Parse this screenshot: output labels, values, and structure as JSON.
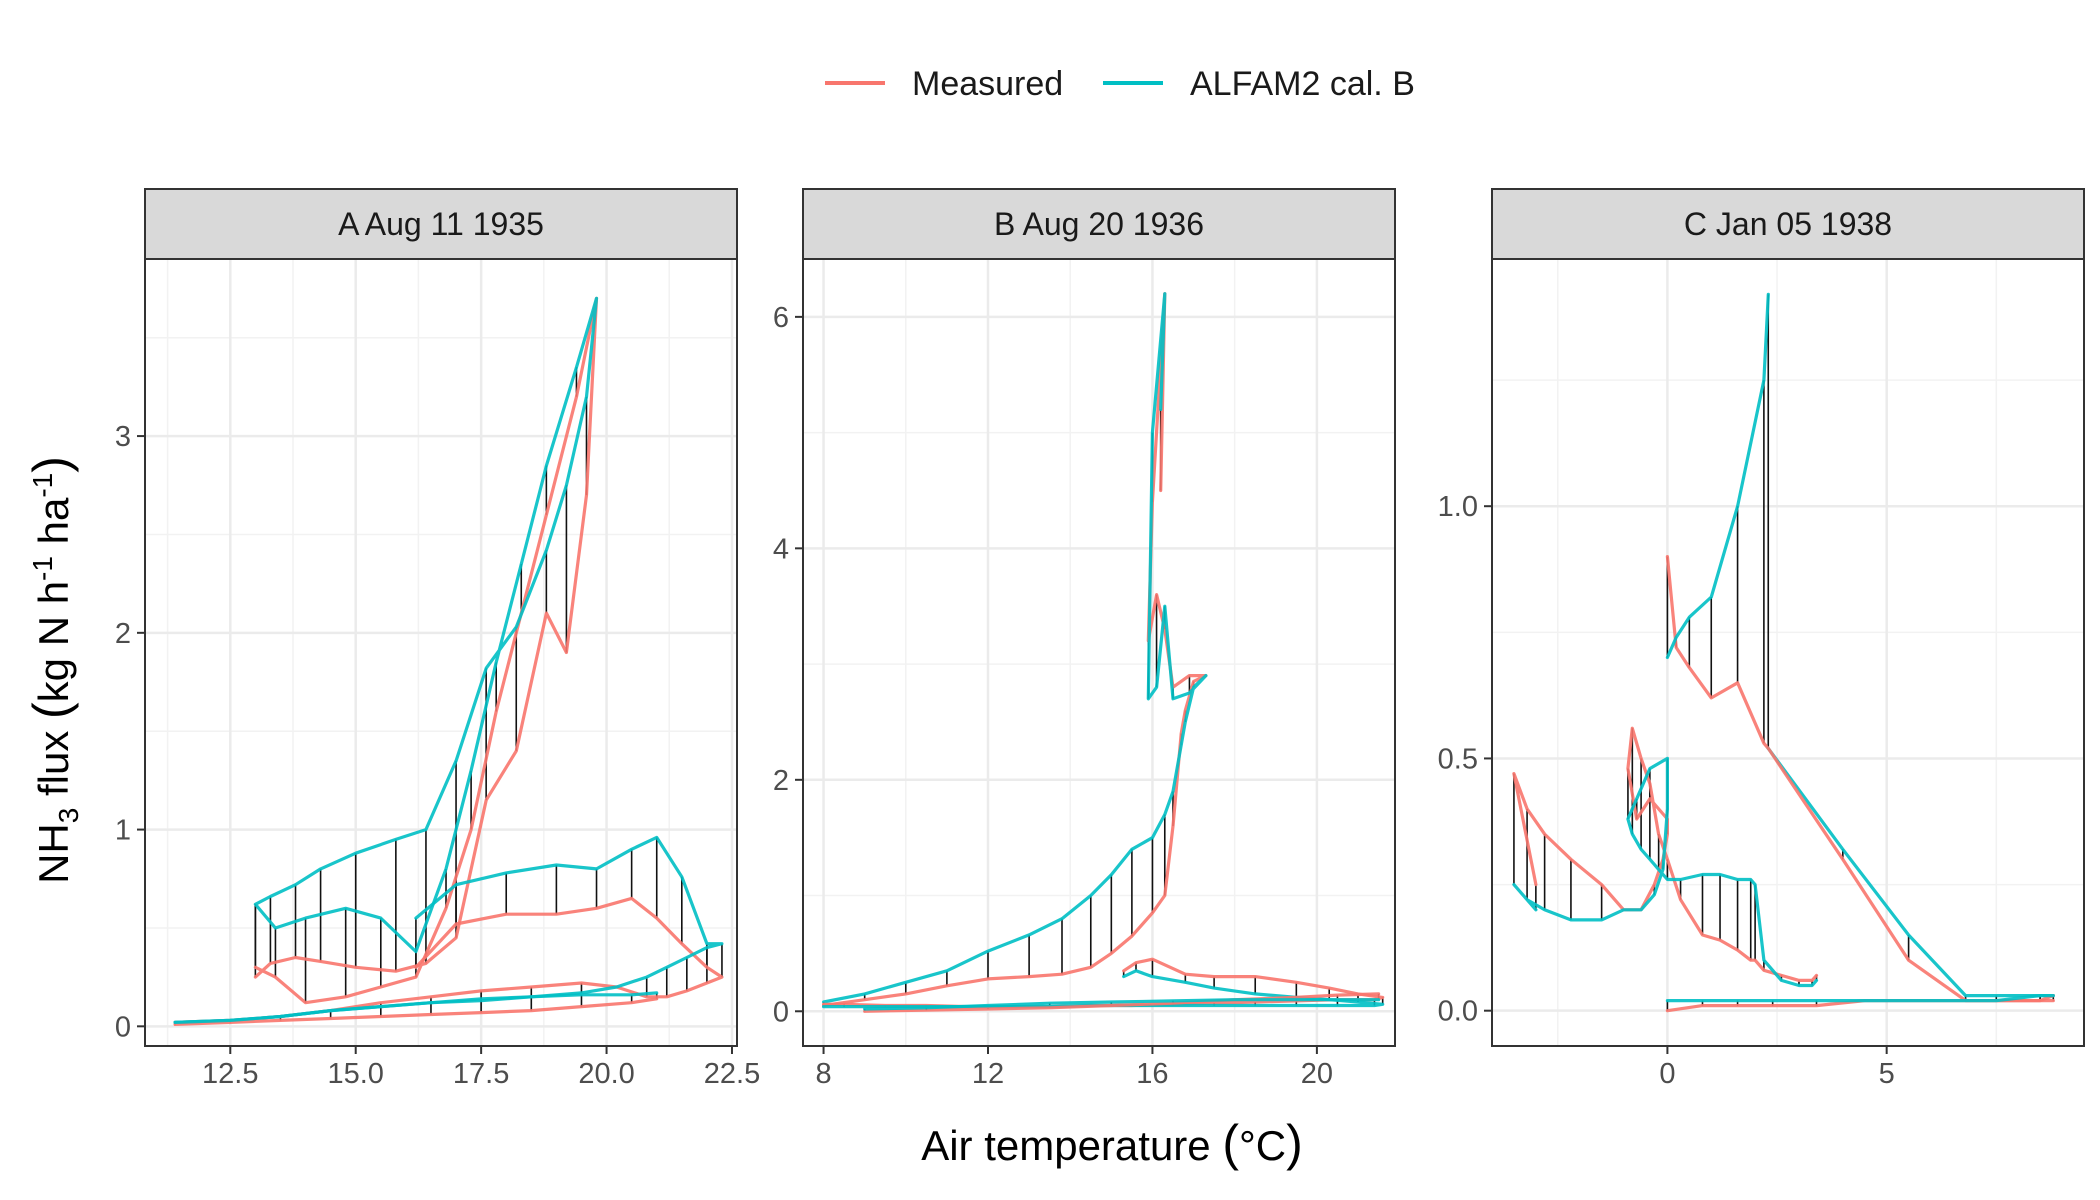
{
  "chart_data": {
    "type": "line",
    "legend": {
      "position": "top",
      "entries": [
        {
          "label": "Measured",
          "color": "#F8766D"
        },
        {
          "label": "ALFAM2 cal. B",
          "color": "#00BFC4"
        }
      ]
    },
    "xlabel": "Air temperature (°C)",
    "ylabel": "NH3 flux (kg N h-1 ha-1)",
    "ylabel_parts": {
      "a": "NH",
      "sub": "3",
      "b": " flux ",
      "lp": "(",
      "c": "kg N h",
      "sup1": "-1",
      "d": " ha",
      "sup2": "-1",
      "rp": ")"
    },
    "xlabel_parts": {
      "a": "Air temperature ",
      "lp": "(",
      "b": "°C",
      "rp": ")"
    },
    "grid": true,
    "panels": [
      {
        "title": "A Aug 11 1935",
        "xlim": [
          10.8,
          22.6
        ],
        "ylim": [
          -0.1,
          3.9
        ],
        "xticks": [
          12.5,
          15.0,
          17.5,
          20.0,
          22.5
        ],
        "xtick_labels": [
          "12.5",
          "15.0",
          "17.5",
          "20.0",
          "22.5"
        ],
        "yticks": [
          0,
          1,
          2,
          3
        ],
        "ytick_labels": [
          "0",
          "1",
          "2",
          "3"
        ],
        "series": [
          {
            "name": "Measured",
            "x": [
              13.0,
              13.3,
              13.8,
              14.3,
              15.0,
              15.8,
              16.4,
              17.0,
              17.6,
              18.2,
              18.8,
              19.2,
              19.6,
              19.8,
              19.4,
              18.8,
              18.3,
              17.8,
              17.3,
              16.8,
              16.2,
              15.5,
              14.8,
              14.0,
              13.4,
              13.0
            ],
            "y": [
              0.25,
              0.32,
              0.35,
              0.33,
              0.3,
              0.28,
              0.32,
              0.45,
              1.15,
              1.4,
              2.1,
              1.9,
              2.7,
              3.7,
              3.2,
              2.6,
              2.1,
              1.6,
              1.0,
              0.6,
              0.25,
              0.2,
              0.15,
              0.12,
              0.25,
              0.3
            ]
          },
          {
            "name": "ALFAM2 cal. B",
            "x": [
              13.0,
              13.3,
              13.8,
              14.3,
              15.0,
              15.8,
              16.4,
              17.0,
              17.6,
              18.2,
              18.8,
              19.2,
              19.6,
              19.8,
              19.4,
              18.8,
              18.3,
              17.8,
              17.3,
              16.8,
              16.2,
              15.5,
              14.8,
              14.0,
              13.4,
              13.0
            ],
            "y": [
              0.62,
              0.66,
              0.72,
              0.8,
              0.88,
              0.95,
              1.0,
              1.35,
              1.82,
              2.03,
              2.42,
              2.75,
              3.2,
              3.7,
              3.35,
              2.85,
              2.35,
              1.85,
              1.3,
              0.8,
              0.38,
              0.55,
              0.6,
              0.55,
              0.5,
              0.62
            ]
          },
          {
            "name": "Measured",
            "x": [
              16.2,
              17.0,
              18.0,
              19.0,
              19.8,
              20.5,
              21.0,
              21.5,
              22.0,
              22.3,
              22.0,
              21.6,
              21.2,
              20.8,
              20.2,
              19.5,
              18.5,
              17.5,
              16.5,
              15.5,
              14.5,
              13.5,
              12.5,
              11.4
            ],
            "y": [
              0.3,
              0.52,
              0.57,
              0.57,
              0.6,
              0.65,
              0.55,
              0.42,
              0.3,
              0.25,
              0.22,
              0.18,
              0.15,
              0.15,
              0.2,
              0.22,
              0.2,
              0.18,
              0.15,
              0.12,
              0.08,
              0.05,
              0.03,
              0.02
            ]
          },
          {
            "name": "ALFAM2 cal. B",
            "x": [
              16.2,
              17.0,
              18.0,
              19.0,
              19.8,
              20.5,
              21.0,
              21.5,
              22.0,
              22.3,
              22.0,
              21.6,
              21.2,
              20.8,
              20.2,
              19.5,
              18.5,
              17.5,
              16.5,
              15.5,
              14.5,
              13.5,
              12.5,
              11.4
            ],
            "y": [
              0.55,
              0.72,
              0.78,
              0.82,
              0.8,
              0.9,
              0.96,
              0.76,
              0.42,
              0.42,
              0.4,
              0.35,
              0.3,
              0.25,
              0.2,
              0.17,
              0.15,
              0.13,
              0.12,
              0.1,
              0.08,
              0.05,
              0.03,
              0.02
            ]
          },
          {
            "name": "Measured",
            "x": [
              11.4,
              12.5,
              13.5,
              14.5,
              15.5,
              16.5,
              17.5,
              18.5,
              19.5,
              20.5,
              21.0
            ],
            "y": [
              0.01,
              0.02,
              0.03,
              0.04,
              0.05,
              0.06,
              0.07,
              0.08,
              0.1,
              0.12,
              0.14
            ]
          },
          {
            "name": "ALFAM2 cal. B",
            "x": [
              11.4,
              12.5,
              13.5,
              14.5,
              15.5,
              16.5,
              17.5,
              18.5,
              19.5,
              20.5,
              21.0
            ],
            "y": [
              0.02,
              0.03,
              0.05,
              0.08,
              0.1,
              0.12,
              0.14,
              0.15,
              0.16,
              0.16,
              0.17
            ]
          }
        ]
      },
      {
        "title": "B Aug 20 1936",
        "xlim": [
          7.5,
          21.9
        ],
        "ylim": [
          -0.3,
          6.5
        ],
        "xticks": [
          8,
          12,
          16,
          20
        ],
        "xtick_labels": [
          "8",
          "12",
          "16",
          "20"
        ],
        "yticks": [
          0,
          2,
          4,
          6
        ],
        "ytick_labels": [
          "0",
          "2",
          "4",
          "6"
        ],
        "series": [
          {
            "name": "Measured",
            "x": [
              8.0,
              9.0,
              10.0,
              11.0,
              12.0,
              13.0,
              13.8,
              14.5,
              15.0,
              15.5,
              16.0,
              16.3,
              16.5,
              16.7,
              16.8,
              17.0,
              17.3,
              16.9,
              16.5,
              16.3,
              16.1,
              15.9,
              16.0,
              16.3,
              16.2
            ],
            "y": [
              0.05,
              0.1,
              0.15,
              0.22,
              0.28,
              0.3,
              0.32,
              0.38,
              0.5,
              0.65,
              0.85,
              1.0,
              1.6,
              2.4,
              2.6,
              2.85,
              2.9,
              2.9,
              2.8,
              3.3,
              3.6,
              3.2,
              4.4,
              6.2,
              4.5
            ]
          },
          {
            "name": "ALFAM2 cal. B",
            "x": [
              8.0,
              9.0,
              10.0,
              11.0,
              12.0,
              13.0,
              13.8,
              14.5,
              15.0,
              15.5,
              16.0,
              16.3,
              16.5,
              16.7,
              16.8,
              17.0,
              17.3,
              16.9,
              16.5,
              16.3,
              16.1,
              15.9,
              16.0,
              16.3,
              16.2
            ],
            "y": [
              0.08,
              0.15,
              0.25,
              0.35,
              0.52,
              0.66,
              0.8,
              1.0,
              1.18,
              1.4,
              1.5,
              1.7,
              1.9,
              2.3,
              2.5,
              2.8,
              2.9,
              2.75,
              2.7,
              3.5,
              2.8,
              2.7,
              5.0,
              6.2,
              5.2
            ]
          },
          {
            "name": "Measured",
            "x": [
              15.3,
              15.6,
              16.0,
              16.8,
              17.5,
              18.5,
              19.5,
              20.3,
              21.0,
              21.6,
              21.4,
              20.5,
              19.5,
              18.5,
              17.5,
              16.5,
              15.5,
              14.5,
              13.5,
              12.5,
              11.5,
              10.5,
              9.5,
              8.5,
              8.0
            ],
            "y": [
              0.35,
              0.42,
              0.45,
              0.32,
              0.3,
              0.3,
              0.25,
              0.2,
              0.15,
              0.12,
              0.1,
              0.1,
              0.09,
              0.08,
              0.07,
              0.06,
              0.05,
              0.05,
              0.04,
              0.04,
              0.04,
              0.05,
              0.05,
              0.06,
              0.06
            ]
          },
          {
            "name": "ALFAM2 cal. B",
            "x": [
              15.3,
              15.6,
              16.0,
              16.8,
              17.5,
              18.5,
              19.5,
              20.3,
              21.0,
              21.6,
              21.4,
              20.5,
              19.5,
              18.5,
              17.5,
              16.5,
              15.5,
              14.5,
              13.5,
              12.5,
              11.5,
              10.5,
              9.5,
              8.5,
              8.0
            ],
            "y": [
              0.3,
              0.35,
              0.3,
              0.25,
              0.2,
              0.15,
              0.12,
              0.1,
              0.08,
              0.06,
              0.05,
              0.05,
              0.05,
              0.05,
              0.05,
              0.05,
              0.05,
              0.05,
              0.04,
              0.04,
              0.04,
              0.04,
              0.04,
              0.04,
              0.04
            ]
          },
          {
            "name": "Measured",
            "x": [
              9.0,
              10.5,
              12.0,
              13.5,
              15.0,
              16.5,
              18.0,
              19.5,
              20.5,
              21.5
            ],
            "y": [
              0.0,
              0.01,
              0.02,
              0.03,
              0.05,
              0.07,
              0.1,
              0.12,
              0.14,
              0.15
            ]
          },
          {
            "name": "ALFAM2 cal. B",
            "x": [
              9.0,
              10.5,
              12.0,
              13.5,
              15.0,
              16.5,
              18.0,
              19.5,
              20.5,
              21.5
            ],
            "y": [
              0.02,
              0.03,
              0.05,
              0.07,
              0.08,
              0.09,
              0.1,
              0.1,
              0.1,
              0.1
            ]
          }
        ]
      },
      {
        "title": "C Jan 05 1938",
        "xlim": [
          -4.0,
          9.5
        ],
        "ylim": [
          -0.07,
          1.49
        ],
        "xticks": [
          0,
          5
        ],
        "xtick_labels": [
          "0",
          "5"
        ],
        "yticks": [
          0.0,
          0.5,
          1.0
        ],
        "ytick_labels": [
          "0.0",
          "0.5",
          "1.0"
        ],
        "series": [
          {
            "name": "Measured",
            "x": [
              0.0,
              0.2,
              0.5,
              1.0,
              1.6,
              2.2,
              2.3
            ],
            "y": [
              0.9,
              0.72,
              0.68,
              0.62,
              0.65,
              0.53,
              0.52
            ]
          },
          {
            "name": "ALFAM2 cal. B",
            "x": [
              0.0,
              0.2,
              0.5,
              1.0,
              1.6,
              2.2,
              2.3
            ],
            "y": [
              0.7,
              0.74,
              0.78,
              0.82,
              1.0,
              1.25,
              1.42
            ]
          },
          {
            "name": "ALFAM2 cal. B",
            "x": [
              2.3,
              4.0,
              5.5,
              6.8,
              7.5,
              8.5,
              8.8
            ],
            "y": [
              0.52,
              0.32,
              0.15,
              0.03,
              0.03,
              0.03,
              0.03
            ]
          },
          {
            "name": "Measured",
            "x": [
              2.3,
              4.0,
              5.5,
              6.8,
              7.5,
              8.5,
              8.8
            ],
            "y": [
              0.52,
              0.3,
              0.1,
              0.02,
              0.02,
              0.02,
              0.03
            ]
          },
          {
            "name": "Measured",
            "x": [
              -3.0,
              -3.5,
              -3.2,
              -2.8,
              -2.2,
              -1.5,
              -1.0,
              -0.6,
              -0.3,
              -0.1,
              0.0,
              0.0,
              -0.4,
              -0.7,
              -0.9,
              -0.8,
              -0.6,
              -0.4,
              -0.2,
              0.0,
              0.3,
              0.8,
              1.2,
              1.6,
              1.9,
              2.0,
              2.2,
              2.6,
              3.0,
              3.3,
              3.4
            ],
            "y": [
              0.25,
              0.47,
              0.4,
              0.35,
              0.3,
              0.25,
              0.2,
              0.2,
              0.25,
              0.3,
              0.35,
              0.38,
              0.42,
              0.38,
              0.48,
              0.56,
              0.5,
              0.45,
              0.35,
              0.3,
              0.22,
              0.15,
              0.14,
              0.12,
              0.1,
              0.1,
              0.08,
              0.07,
              0.06,
              0.06,
              0.07
            ]
          },
          {
            "name": "ALFAM2 cal. B",
            "x": [
              -3.0,
              -3.5,
              -3.2,
              -2.8,
              -2.2,
              -1.5,
              -1.0,
              -0.6,
              -0.3,
              -0.1,
              0.0,
              0.0,
              -0.4,
              -0.7,
              -0.9,
              -0.8,
              -0.6,
              -0.4,
              -0.2,
              0.0,
              0.3,
              0.8,
              1.2,
              1.6,
              1.9,
              2.0,
              2.2,
              2.6,
              3.0,
              3.3,
              3.4
            ],
            "y": [
              0.2,
              0.25,
              0.22,
              0.2,
              0.18,
              0.18,
              0.2,
              0.2,
              0.23,
              0.28,
              0.4,
              0.5,
              0.48,
              0.42,
              0.38,
              0.35,
              0.32,
              0.3,
              0.28,
              0.26,
              0.26,
              0.27,
              0.27,
              0.26,
              0.26,
              0.25,
              0.1,
              0.06,
              0.05,
              0.05,
              0.06
            ]
          },
          {
            "name": "Measured",
            "x": [
              0.0,
              0.8,
              1.6,
              2.4,
              3.4,
              4.5,
              5.5,
              6.5,
              7.5,
              8.5,
              8.8
            ],
            "y": [
              0.0,
              0.01,
              0.01,
              0.01,
              0.01,
              0.02,
              0.02,
              0.02,
              0.02,
              0.02,
              0.02
            ]
          },
          {
            "name": "ALFAM2 cal. B",
            "x": [
              0.0,
              0.8,
              1.6,
              2.4,
              3.4,
              4.5,
              5.5,
              6.5,
              7.5,
              8.5,
              8.8
            ],
            "y": [
              0.02,
              0.02,
              0.02,
              0.02,
              0.02,
              0.02,
              0.02,
              0.02,
              0.02,
              0.03,
              0.03
            ]
          }
        ]
      }
    ]
  }
}
